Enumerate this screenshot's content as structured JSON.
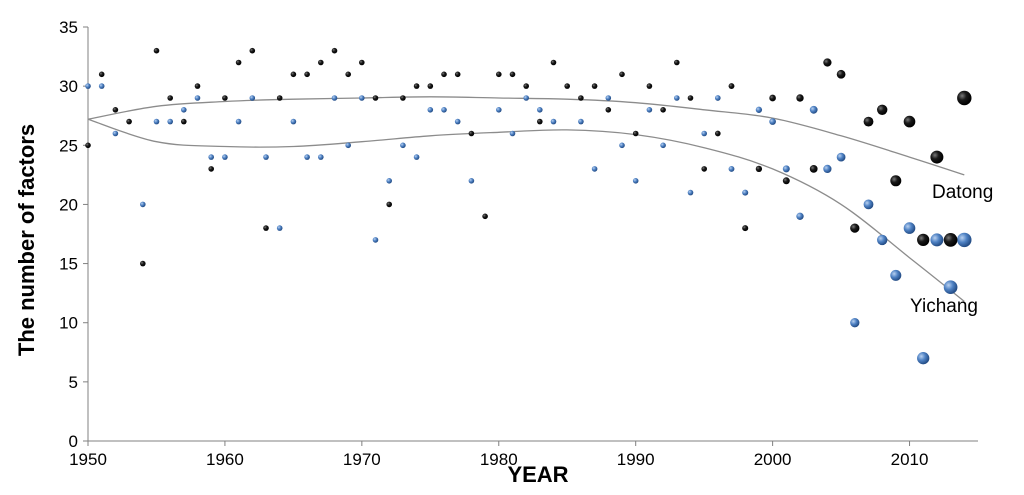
{
  "chart_data": {
    "type": "scatter",
    "xlabel": "YEAR",
    "ylabel": "The number of factors",
    "xlim": [
      1950,
      2015
    ],
    "ylim": [
      0,
      35
    ],
    "x_ticks": [
      1950,
      1960,
      1970,
      1980,
      1990,
      2000,
      2010
    ],
    "y_ticks": [
      0,
      5,
      10,
      15,
      20,
      25,
      30,
      35
    ],
    "grid": false,
    "colors": {
      "Datong": "#000000",
      "Yichang": "#4a78b8",
      "trend": "#8c8c8c"
    },
    "series": [
      {
        "name": "Datong",
        "points": [
          [
            1950,
            25
          ],
          [
            1951,
            31
          ],
          [
            1952,
            28
          ],
          [
            1953,
            27
          ],
          [
            1954,
            15
          ],
          [
            1955,
            33
          ],
          [
            1956,
            29
          ],
          [
            1957,
            27
          ],
          [
            1958,
            30
          ],
          [
            1959,
            23
          ],
          [
            1960,
            29
          ],
          [
            1961,
            32
          ],
          [
            1962,
            33
          ],
          [
            1963,
            18
          ],
          [
            1964,
            29
          ],
          [
            1965,
            31
          ],
          [
            1966,
            31
          ],
          [
            1967,
            32
          ],
          [
            1968,
            33
          ],
          [
            1969,
            31
          ],
          [
            1970,
            32
          ],
          [
            1971,
            29
          ],
          [
            1972,
            20
          ],
          [
            1973,
            29
          ],
          [
            1974,
            30
          ],
          [
            1975,
            30
          ],
          [
            1976,
            31
          ],
          [
            1977,
            31
          ],
          [
            1978,
            26
          ],
          [
            1979,
            19
          ],
          [
            1980,
            31
          ],
          [
            1981,
            31
          ],
          [
            1982,
            30
          ],
          [
            1983,
            27
          ],
          [
            1984,
            32
          ],
          [
            1985,
            30
          ],
          [
            1986,
            29
          ],
          [
            1987,
            30
          ],
          [
            1988,
            28
          ],
          [
            1989,
            31
          ],
          [
            1990,
            26
          ],
          [
            1991,
            30
          ],
          [
            1992,
            28
          ],
          [
            1993,
            32
          ],
          [
            1994,
            29
          ],
          [
            1995,
            23
          ],
          [
            1996,
            26
          ],
          [
            1997,
            30
          ],
          [
            1998,
            18
          ],
          [
            1999,
            23
          ],
          [
            2000,
            29
          ],
          [
            2001,
            22
          ],
          [
            2002,
            29
          ],
          [
            2003,
            23
          ],
          [
            2004,
            32
          ],
          [
            2005,
            31
          ],
          [
            2006,
            18
          ],
          [
            2007,
            27
          ],
          [
            2008,
            28
          ],
          [
            2009,
            22
          ],
          [
            2010,
            27
          ],
          [
            2011,
            17
          ],
          [
            2012,
            24
          ],
          [
            2013,
            17
          ],
          [
            2014,
            29
          ]
        ]
      },
      {
        "name": "Yichang",
        "points": [
          [
            1950,
            30
          ],
          [
            1951,
            30
          ],
          [
            1952,
            26
          ],
          [
            1954,
            20
          ],
          [
            1955,
            27
          ],
          [
            1956,
            27
          ],
          [
            1957,
            28
          ],
          [
            1958,
            29
          ],
          [
            1959,
            24
          ],
          [
            1960,
            24
          ],
          [
            1961,
            27
          ],
          [
            1962,
            29
          ],
          [
            1963,
            24
          ],
          [
            1964,
            18
          ],
          [
            1965,
            27
          ],
          [
            1966,
            24
          ],
          [
            1967,
            24
          ],
          [
            1968,
            29
          ],
          [
            1969,
            25
          ],
          [
            1970,
            29
          ],
          [
            1971,
            17
          ],
          [
            1972,
            22
          ],
          [
            1973,
            25
          ],
          [
            1974,
            24
          ],
          [
            1975,
            28
          ],
          [
            1976,
            28
          ],
          [
            1977,
            27
          ],
          [
            1978,
            22
          ],
          [
            1980,
            28
          ],
          [
            1981,
            26
          ],
          [
            1982,
            29
          ],
          [
            1983,
            28
          ],
          [
            1984,
            27
          ],
          [
            1986,
            27
          ],
          [
            1987,
            23
          ],
          [
            1988,
            29
          ],
          [
            1989,
            25
          ],
          [
            1990,
            22
          ],
          [
            1991,
            28
          ],
          [
            1992,
            25
          ],
          [
            1993,
            29
          ],
          [
            1994,
            21
          ],
          [
            1995,
            26
          ],
          [
            1996,
            29
          ],
          [
            1997,
            23
          ],
          [
            1998,
            21
          ],
          [
            1999,
            28
          ],
          [
            2000,
            27
          ],
          [
            2001,
            23
          ],
          [
            2002,
            19
          ],
          [
            2003,
            28
          ],
          [
            2004,
            23
          ],
          [
            2005,
            24
          ],
          [
            2006,
            10
          ],
          [
            2007,
            20
          ],
          [
            2008,
            17
          ],
          [
            2009,
            14
          ],
          [
            2010,
            18
          ],
          [
            2011,
            7
          ],
          [
            2012,
            17
          ],
          [
            2013,
            13
          ],
          [
            2014,
            17
          ]
        ]
      }
    ],
    "trendlines": [
      {
        "series": "Datong",
        "label": "Datong",
        "points": [
          [
            1950,
            27.2
          ],
          [
            1955,
            28.3
          ],
          [
            1960,
            28.7
          ],
          [
            1965,
            28.9
          ],
          [
            1970,
            29.0
          ],
          [
            1975,
            29.1
          ],
          [
            1980,
            29.0
          ],
          [
            1985,
            28.9
          ],
          [
            1990,
            28.6
          ],
          [
            1995,
            28.0
          ],
          [
            2000,
            27.3
          ],
          [
            2005,
            25.8
          ],
          [
            2010,
            24.0
          ],
          [
            2014,
            22.5
          ]
        ]
      },
      {
        "series": "Yichang",
        "label": "Yichang",
        "points": [
          [
            1950,
            27.2
          ],
          [
            1955,
            25.3
          ],
          [
            1960,
            24.9
          ],
          [
            1965,
            24.9
          ],
          [
            1970,
            25.3
          ],
          [
            1975,
            25.8
          ],
          [
            1980,
            26.1
          ],
          [
            1985,
            26.3
          ],
          [
            1990,
            25.9
          ],
          [
            1995,
            24.8
          ],
          [
            2000,
            23.0
          ],
          [
            2005,
            20.0
          ],
          [
            2010,
            15.5
          ],
          [
            2014,
            11.8
          ]
        ]
      }
    ]
  }
}
